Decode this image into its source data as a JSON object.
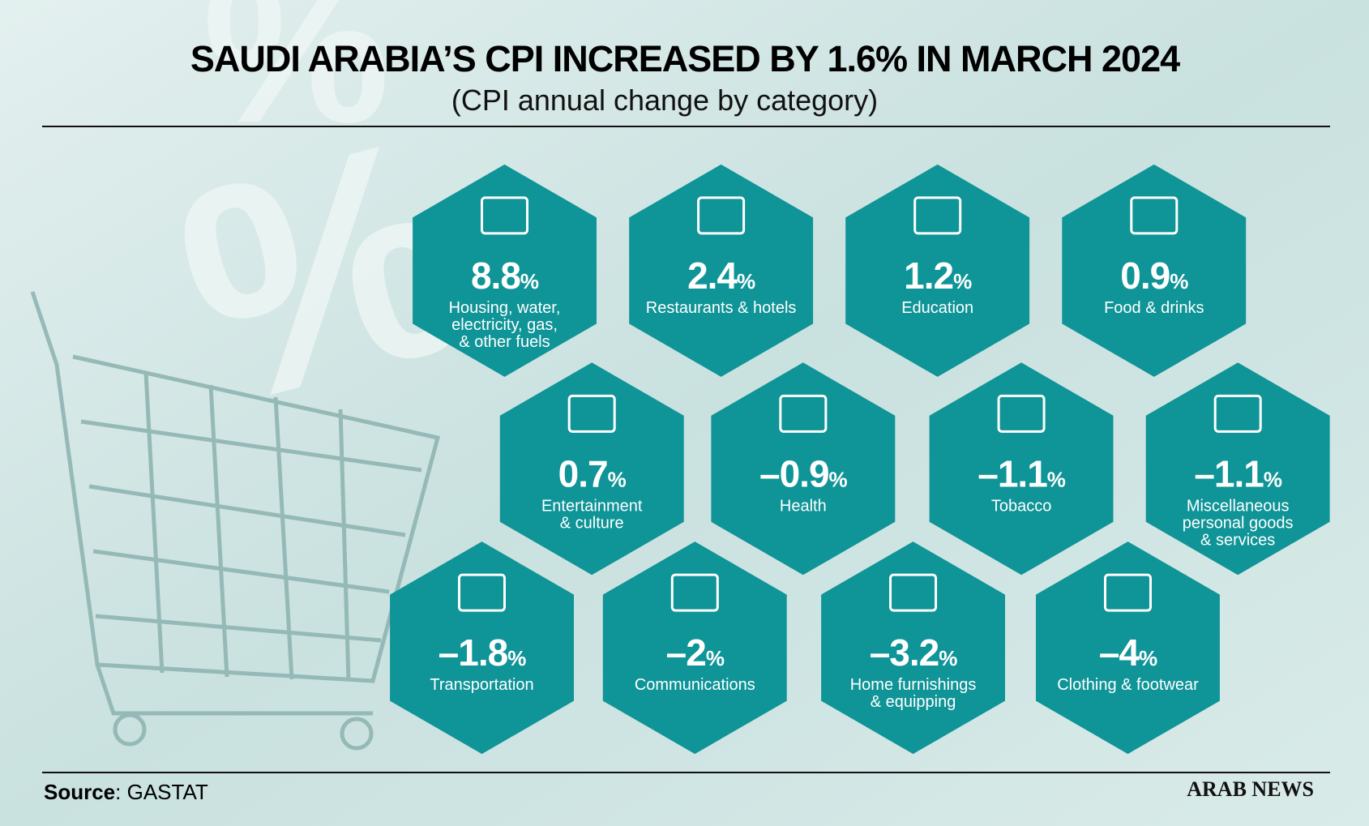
{
  "header": {
    "title": "SAUDI ARABIA’S CPI INCREASED BY 1.6% IN MARCH 2024",
    "subtitle": "(CPI annual change by category)"
  },
  "unit": "%",
  "items": [
    {
      "value": "8.8",
      "label": [
        "Housing, water,",
        "electricity, gas,",
        "& other fuels"
      ]
    },
    {
      "value": "2.4",
      "label": [
        "Restaurants & hotels"
      ]
    },
    {
      "value": "1.2",
      "label": [
        "Education"
      ]
    },
    {
      "value": "0.9",
      "label": [
        "Food & drinks"
      ]
    },
    {
      "value": "0.7",
      "label": [
        "Entertainment",
        "& culture"
      ]
    },
    {
      "value": "–0.9",
      "label": [
        "Health"
      ]
    },
    {
      "value": "–1.1",
      "label": [
        "Tobacco"
      ]
    },
    {
      "value": "–1.1",
      "label": [
        "Miscellaneous",
        "personal goods",
        "& services"
      ]
    },
    {
      "value": "–1.8",
      "label": [
        "Transportation"
      ]
    },
    {
      "value": "–2",
      "label": [
        "Communications"
      ]
    },
    {
      "value": "–3.2",
      "label": [
        "Home furnishings",
        "& equipping"
      ]
    },
    {
      "value": "–4",
      "label": [
        "Clothing & footwear"
      ]
    }
  ],
  "footer": {
    "source_label": "Source",
    "source": ": GASTAT",
    "brand": "ARAB NEWS"
  }
}
